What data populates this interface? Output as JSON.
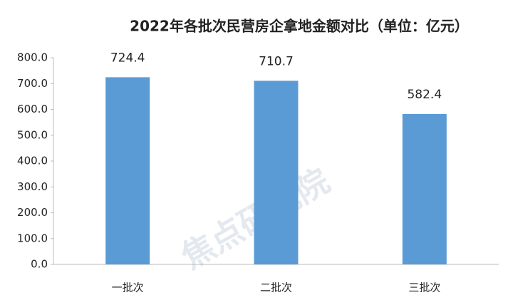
{
  "chart_data": {
    "type": "bar",
    "title": "2022年各批次民营房企拿地金额对比（单位：亿元）",
    "watermark": "焦点研究院",
    "categories": [
      "一批次",
      "二批次",
      "三批次"
    ],
    "values": [
      724.4,
      710.7,
      582.4
    ],
    "color": "#5b9bd5",
    "ylim": [
      0,
      800
    ],
    "yticks": [
      {
        "value": 0,
        "label": "0.0"
      },
      {
        "value": 100,
        "label": "100.0"
      },
      {
        "value": 200,
        "label": "200.0"
      },
      {
        "value": 300,
        "label": "300.0"
      },
      {
        "value": 400,
        "label": "400.0"
      },
      {
        "value": 500,
        "label": "500.0"
      },
      {
        "value": 600,
        "label": "600.0"
      },
      {
        "value": 700,
        "label": "700.0"
      },
      {
        "value": 800,
        "label": "800.0"
      }
    ],
    "grid": false
  }
}
